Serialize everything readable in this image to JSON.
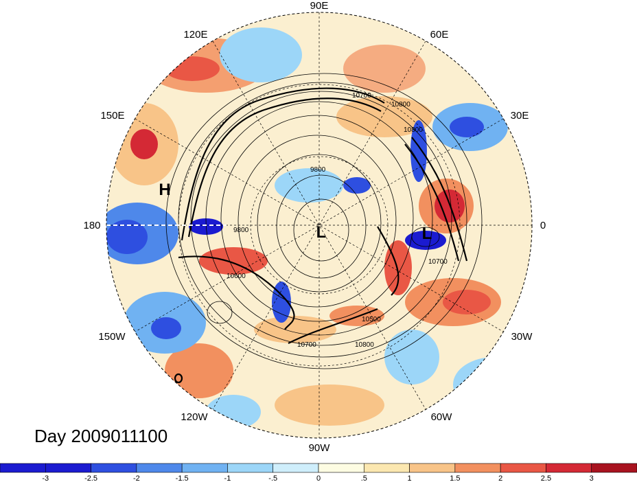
{
  "map": {
    "longitude_labels": [
      "90E",
      "60E",
      "120E",
      "30E",
      "150E",
      "0",
      "180",
      "30W",
      "150W",
      "60W",
      "120W",
      "90W"
    ],
    "pressure_systems": [
      "H",
      "L",
      "L"
    ],
    "contour_labels": [
      "10700",
      "10800",
      "10800",
      "9800",
      "9800",
      "10600",
      "10700",
      "10500",
      "10800",
      "10700"
    ]
  },
  "title": "Day 2009011100",
  "colorbar": {
    "ticks": [
      "-3",
      "-2.5",
      "-2",
      "-1.5",
      "-1",
      "-.5",
      "0",
      ".5",
      "1",
      "1.5",
      "2",
      "2.5",
      "3"
    ],
    "colors": [
      "#1b1bd0",
      "#2e4fe0",
      "#4e88ea",
      "#70b2f2",
      "#9cd6f8",
      "#cfeefb",
      "#fdfce2",
      "#fbe7b0",
      "#f8c488",
      "#f2905f",
      "#e95745",
      "#d42935",
      "#a8131f"
    ]
  }
}
